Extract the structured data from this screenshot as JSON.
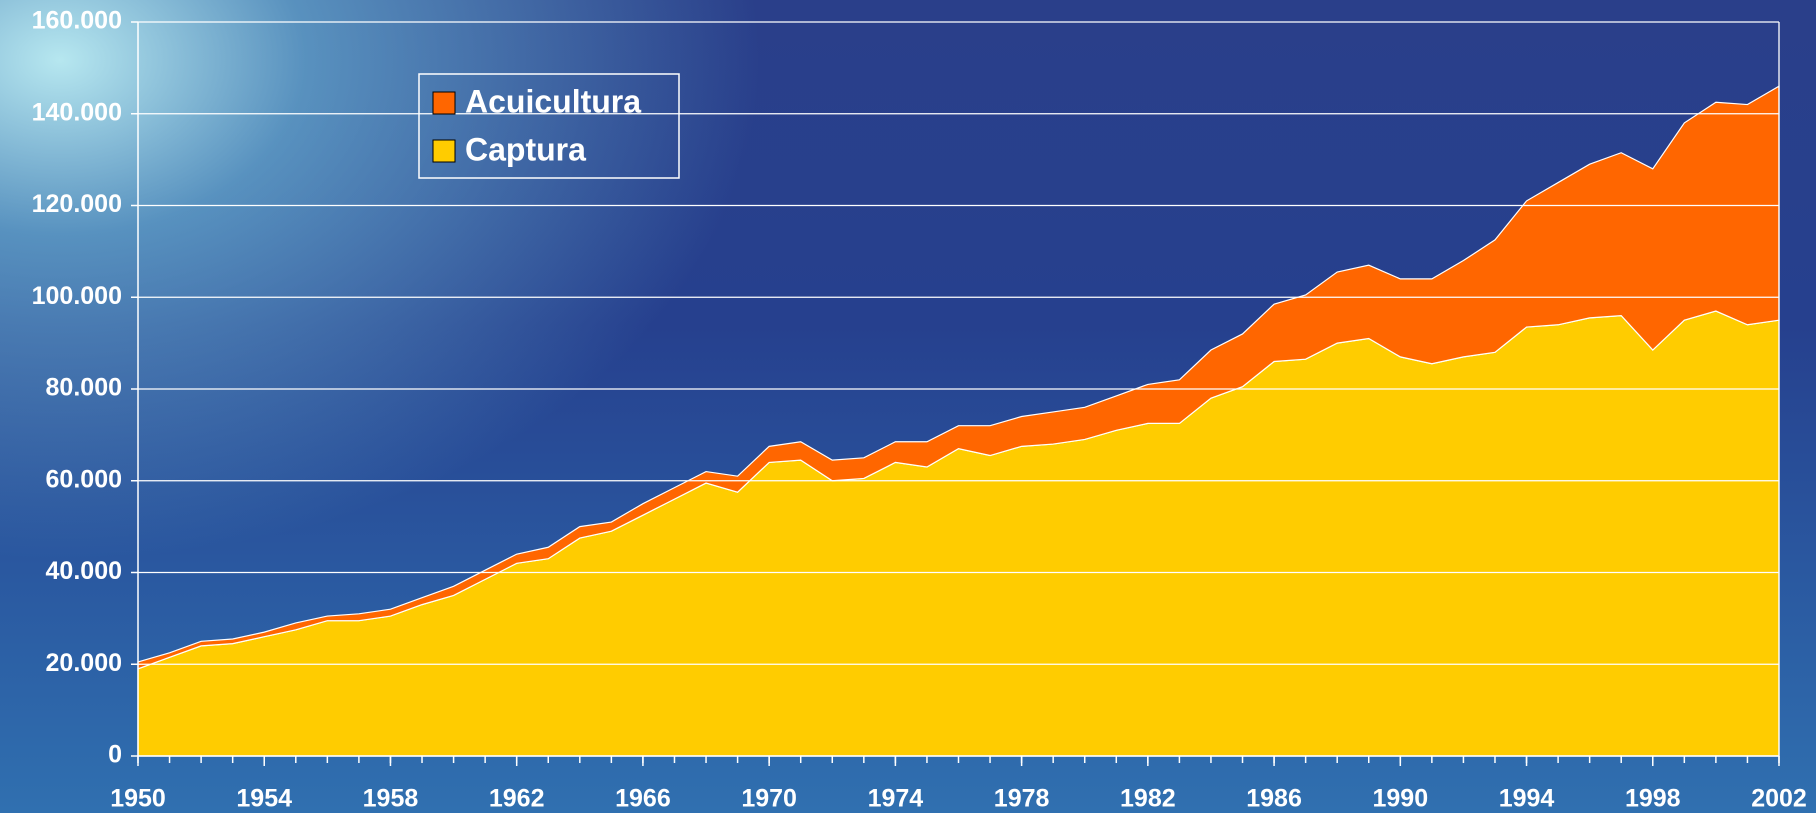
{
  "chart_data": {
    "type": "stacked_area",
    "x": [
      1950,
      1951,
      1952,
      1953,
      1954,
      1955,
      1956,
      1957,
      1958,
      1959,
      1960,
      1961,
      1962,
      1963,
      1964,
      1965,
      1966,
      1967,
      1968,
      1969,
      1970,
      1971,
      1972,
      1973,
      1974,
      1975,
      1976,
      1977,
      1978,
      1979,
      1980,
      1981,
      1982,
      1983,
      1984,
      1985,
      1986,
      1987,
      1988,
      1989,
      1990,
      1991,
      1992,
      1993,
      1994,
      1995,
      1996,
      1997,
      1998,
      1999,
      2000,
      2001,
      2002
    ],
    "series": [
      {
        "name": "Captura",
        "color": "#ffcc00",
        "values": [
          19000,
          21500,
          24000,
          24500,
          26000,
          27500,
          29500,
          29500,
          30500,
          33000,
          35000,
          38500,
          42000,
          43000,
          47500,
          49000,
          52500,
          56000,
          59500,
          57500,
          64000,
          64500,
          60000,
          60500,
          64000,
          63000,
          67000,
          65500,
          67500,
          68000,
          69000,
          71000,
          72500,
          72500,
          78000,
          80500,
          86000,
          86500,
          90000,
          91000,
          87000,
          85500,
          87000,
          88000,
          93500,
          94000,
          95500,
          96000,
          88500,
          95000,
          97000,
          94000,
          95000
        ]
      },
      {
        "name": "Acuicultura",
        "color": "#ff6600",
        "values": [
          1500,
          1000,
          1000,
          1000,
          1000,
          1500,
          1000,
          1500,
          1500,
          1500,
          2000,
          2000,
          2000,
          2500,
          2500,
          2000,
          2500,
          2500,
          2500,
          3500,
          3500,
          4000,
          4500,
          4500,
          4500,
          5500,
          5000,
          6500,
          6500,
          7000,
          7000,
          7500,
          8500,
          9500,
          10500,
          11500,
          12500,
          14000,
          15500,
          16000,
          17000,
          18500,
          21000,
          24500,
          27500,
          31000,
          33500,
          35500,
          39500,
          43000,
          45500,
          48000,
          51000
        ]
      }
    ],
    "xlim": [
      1950,
      2002
    ],
    "xticks": [
      1950,
      1954,
      1958,
      1962,
      1966,
      1970,
      1974,
      1978,
      1982,
      1986,
      1990,
      1994,
      1998,
      2002
    ],
    "ylim": [
      0,
      160000
    ],
    "yticks": [
      0,
      {
        "value": 20000,
        "label": "20.000"
      },
      {
        "value": 40000,
        "label": "40.000"
      },
      {
        "value": 60000,
        "label": "60.000"
      },
      {
        "value": 80000,
        "label": "80.000"
      },
      {
        "value": 100000,
        "label": "100.000"
      },
      {
        "value": 120000,
        "label": "120.000"
      },
      {
        "value": 140000,
        "label": "140.000"
      },
      {
        "value": 160000,
        "label": "160.000"
      }
    ],
    "grid": true
  }
}
